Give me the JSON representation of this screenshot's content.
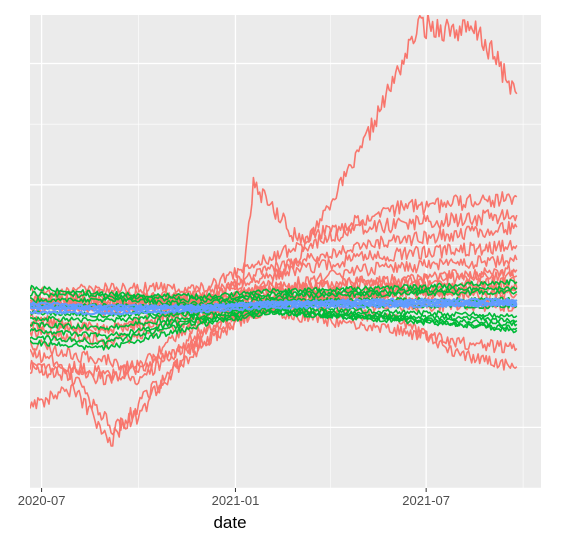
{
  "chart_data": {
    "type": "line",
    "title": "",
    "xlabel": "date",
    "ylabel": "",
    "x_ticks": [
      {
        "value": "2020-07-01",
        "label": "2020-07"
      },
      {
        "value": "2021-01-01",
        "label": "2021-01"
      },
      {
        "value": "2021-07-01",
        "label": "2021-07"
      }
    ],
    "x_minor_ticks": [
      "2020-10-01",
      "2021-04-01",
      "2021-10-01"
    ],
    "xlim": [
      "2020-06-20",
      "2021-10-18"
    ],
    "ylim": [
      -1.5,
      2.4
    ],
    "y_grid_major": [
      -1.0,
      0.0,
      1.0,
      2.0
    ],
    "y_grid_minor": [
      -1.5,
      -0.5,
      0.5,
      1.5
    ],
    "y_tick_labels_visible": false,
    "grid": true,
    "legend": "none",
    "group_colors": {
      "red": "#F8766D",
      "green": "#00BA38",
      "blue": "#619CFF"
    },
    "series": [
      {
        "group": "red",
        "x": [
          "2020-06-20",
          "2020-09-01",
          "2020-12-01",
          "2021-01-20",
          "2021-03-01",
          "2021-05-01",
          "2021-06-25",
          "2021-08-20",
          "2021-09-25"
        ],
        "y": [
          0.02,
          0.03,
          0.05,
          0.1,
          0.4,
          1.3,
          2.32,
          2.25,
          1.75
        ]
      },
      {
        "group": "red",
        "x": [
          "2020-06-20",
          "2020-09-01",
          "2020-12-01",
          "2021-01-08",
          "2021-01-18",
          "2021-03-01",
          "2021-06-01",
          "2021-09-25"
        ],
        "y": [
          0.05,
          0.1,
          0.05,
          0.2,
          1.0,
          0.55,
          0.8,
          0.9
        ]
      },
      {
        "group": "red",
        "x": [
          "2020-06-20",
          "2020-09-01",
          "2020-12-01",
          "2021-02-01",
          "2021-05-01",
          "2021-09-25"
        ],
        "y": [
          0.1,
          0.15,
          0.15,
          0.4,
          0.65,
          0.75
        ]
      },
      {
        "group": "red",
        "x": [
          "2020-06-20",
          "2020-09-01",
          "2020-12-01",
          "2021-02-01",
          "2021-05-01",
          "2021-09-25"
        ],
        "y": [
          0.05,
          0.05,
          0.1,
          0.3,
          0.5,
          0.65
        ]
      },
      {
        "group": "red",
        "x": [
          "2020-06-20",
          "2020-09-01",
          "2020-12-01",
          "2021-02-01",
          "2021-05-01",
          "2021-09-25"
        ],
        "y": [
          0.0,
          0.05,
          0.05,
          0.25,
          0.4,
          0.5
        ]
      },
      {
        "group": "red",
        "x": [
          "2020-06-20",
          "2020-09-01",
          "2020-12-01",
          "2021-02-01",
          "2021-05-01",
          "2021-09-25"
        ],
        "y": [
          -0.02,
          0.0,
          0.0,
          0.15,
          0.3,
          0.38
        ]
      },
      {
        "group": "red",
        "x": [
          "2020-06-20",
          "2020-09-01",
          "2020-12-01",
          "2021-02-01",
          "2021-05-01",
          "2021-09-25"
        ],
        "y": [
          0.0,
          0.02,
          0.0,
          0.1,
          0.2,
          0.25
        ]
      },
      {
        "group": "red",
        "x": [
          "2020-06-20",
          "2020-09-01",
          "2020-12-01",
          "2021-02-01",
          "2021-05-01",
          "2021-09-25"
        ],
        "y": [
          -0.5,
          -0.6,
          -0.3,
          0.0,
          0.1,
          0.15
        ]
      },
      {
        "group": "red",
        "x": [
          "2020-06-20",
          "2020-08-01",
          "2020-09-05",
          "2020-10-01",
          "2020-12-01",
          "2021-02-01",
          "2021-09-25"
        ],
        "y": [
          -0.8,
          -0.7,
          -1.1,
          -0.8,
          -0.3,
          0.0,
          0.0
        ]
      },
      {
        "group": "red",
        "x": [
          "2020-06-20",
          "2020-08-01",
          "2020-09-05",
          "2020-10-01",
          "2020-12-01",
          "2021-02-01",
          "2021-09-25"
        ],
        "y": [
          -0.5,
          -0.6,
          -1.0,
          -0.9,
          -0.2,
          0.05,
          0.02
        ]
      },
      {
        "group": "red",
        "x": [
          "2020-06-20",
          "2020-08-01",
          "2020-10-01",
          "2020-12-01",
          "2021-02-01",
          "2021-06-01",
          "2021-08-01",
          "2021-09-25"
        ],
        "y": [
          -0.4,
          -0.5,
          -0.6,
          -0.2,
          0.0,
          -0.1,
          -0.4,
          -0.5
        ]
      },
      {
        "group": "red",
        "x": [
          "2020-06-20",
          "2020-08-01",
          "2020-10-01",
          "2020-12-01",
          "2021-02-01",
          "2021-06-01",
          "2021-08-01",
          "2021-09-25"
        ],
        "y": [
          -0.3,
          -0.4,
          -0.5,
          -0.1,
          -0.05,
          -0.2,
          -0.3,
          -0.35
        ]
      },
      {
        "group": "red",
        "x": [
          "2020-06-20",
          "2020-09-01",
          "2020-12-01",
          "2021-02-01",
          "2021-06-01",
          "2021-09-25"
        ],
        "y": [
          -0.1,
          -0.2,
          0.0,
          0.05,
          0.1,
          0.1
        ]
      },
      {
        "group": "red",
        "x": [
          "2020-06-20",
          "2020-09-01",
          "2020-12-01",
          "2021-02-01",
          "2021-06-01",
          "2021-09-25"
        ],
        "y": [
          0.05,
          -0.05,
          0.05,
          0.15,
          0.2,
          0.3
        ]
      },
      {
        "group": "red",
        "x": [
          "2020-06-20",
          "2020-09-01",
          "2020-12-01",
          "2021-02-01",
          "2021-06-01",
          "2021-09-25"
        ],
        "y": [
          -0.2,
          -0.3,
          -0.1,
          0.05,
          0.15,
          0.2
        ]
      },
      {
        "group": "red",
        "x": [
          "2020-06-20",
          "2020-09-01",
          "2020-12-01",
          "2021-02-01",
          "2021-06-01",
          "2021-09-25"
        ],
        "y": [
          -0.15,
          -0.2,
          -0.05,
          0.08,
          0.12,
          0.15
        ]
      },
      {
        "group": "green",
        "x": [
          "2020-06-20",
          "2020-09-01",
          "2020-12-01",
          "2021-02-01",
          "2021-06-01",
          "2021-09-25"
        ],
        "y": [
          0.1,
          0.08,
          0.05,
          0.1,
          0.12,
          0.15
        ]
      },
      {
        "group": "green",
        "x": [
          "2020-06-20",
          "2020-09-01",
          "2020-12-01",
          "2021-02-01",
          "2021-06-01",
          "2021-09-25"
        ],
        "y": [
          0.05,
          0.05,
          0.02,
          0.08,
          0.1,
          0.12
        ]
      },
      {
        "group": "green",
        "x": [
          "2020-06-20",
          "2020-09-01",
          "2020-12-01",
          "2021-02-01",
          "2021-06-01",
          "2021-09-25"
        ],
        "y": [
          0.0,
          0.0,
          0.0,
          0.05,
          0.05,
          0.05
        ]
      },
      {
        "group": "green",
        "x": [
          "2020-06-20",
          "2020-09-01",
          "2020-12-01",
          "2021-02-01",
          "2021-06-01",
          "2021-09-25"
        ],
        "y": [
          -0.05,
          -0.08,
          -0.03,
          0.02,
          0.0,
          0.0
        ]
      },
      {
        "group": "green",
        "x": [
          "2020-06-20",
          "2020-09-01",
          "2020-12-01",
          "2021-02-01",
          "2021-06-01",
          "2021-09-25"
        ],
        "y": [
          -0.1,
          -0.12,
          -0.05,
          0.0,
          -0.05,
          -0.08
        ]
      },
      {
        "group": "green",
        "x": [
          "2020-06-20",
          "2020-09-01",
          "2020-12-01",
          "2021-02-01",
          "2021-06-01",
          "2021-09-25"
        ],
        "y": [
          -0.15,
          -0.18,
          -0.08,
          -0.02,
          -0.08,
          -0.12
        ]
      },
      {
        "group": "green",
        "x": [
          "2020-06-20",
          "2020-09-01",
          "2020-12-01",
          "2021-02-01",
          "2021-06-01",
          "2021-09-25"
        ],
        "y": [
          -0.2,
          -0.25,
          -0.1,
          -0.03,
          -0.1,
          -0.15
        ]
      },
      {
        "group": "green",
        "x": [
          "2020-06-20",
          "2020-09-01",
          "2020-12-01",
          "2021-02-01",
          "2021-06-01",
          "2021-09-25"
        ],
        "y": [
          -0.25,
          -0.3,
          -0.12,
          -0.05,
          -0.12,
          -0.18
        ]
      },
      {
        "group": "green",
        "x": [
          "2020-06-20",
          "2020-09-01",
          "2020-12-01",
          "2021-02-01",
          "2021-06-01",
          "2021-09-25"
        ],
        "y": [
          0.15,
          0.1,
          0.08,
          0.12,
          0.15,
          0.2
        ]
      },
      {
        "group": "green",
        "x": [
          "2020-06-20",
          "2020-09-01",
          "2020-12-01",
          "2021-02-01",
          "2021-06-01",
          "2021-09-25"
        ],
        "y": [
          -0.3,
          -0.35,
          -0.15,
          -0.06,
          -0.1,
          -0.2
        ]
      },
      {
        "group": "blue",
        "x": [
          "2020-06-20",
          "2020-09-01",
          "2020-12-01",
          "2021-02-01",
          "2021-06-01",
          "2021-09-25"
        ],
        "y": [
          0.02,
          0.0,
          0.0,
          0.03,
          0.05,
          0.05
        ]
      },
      {
        "group": "blue",
        "x": [
          "2020-06-20",
          "2020-09-01",
          "2020-12-01",
          "2021-02-01",
          "2021-06-01",
          "2021-09-25"
        ],
        "y": [
          -0.02,
          -0.03,
          -0.02,
          0.01,
          0.02,
          0.03
        ]
      },
      {
        "group": "blue",
        "x": [
          "2020-06-20",
          "2020-09-01",
          "2020-12-01",
          "2021-02-01",
          "2021-06-01",
          "2021-09-25"
        ],
        "y": [
          -0.05,
          -0.06,
          -0.04,
          -0.01,
          0.0,
          0.01
        ]
      },
      {
        "group": "blue",
        "x": [
          "2020-06-20",
          "2020-09-01",
          "2020-12-01",
          "2021-02-01",
          "2021-06-01",
          "2021-09-25"
        ],
        "y": [
          0.0,
          -0.02,
          -0.01,
          0.02,
          0.03,
          0.02
        ]
      }
    ]
  }
}
